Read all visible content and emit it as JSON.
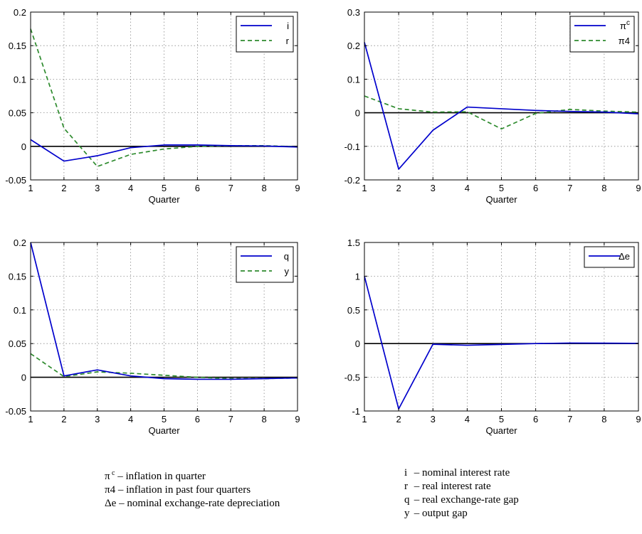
{
  "chart_data": [
    {
      "type": "line",
      "xlabel": "Quarter",
      "ylabel": "",
      "title": "",
      "x": [
        1,
        2,
        3,
        4,
        5,
        6,
        7,
        8,
        9
      ],
      "xlim": [
        1,
        9
      ],
      "ylim": [
        -0.05,
        0.2
      ],
      "xticks": [
        "1",
        "2",
        "3",
        "4",
        "5",
        "6",
        "7",
        "8",
        "9"
      ],
      "yticks": [
        "-0.05",
        "0",
        "0.05",
        "0.1",
        "0.15",
        "0.2"
      ],
      "ytick_values": [
        -0.05,
        0,
        0.05,
        0.1,
        0.15,
        0.2
      ],
      "grid": true,
      "legend": "top-right",
      "series": [
        {
          "name": "i",
          "color": "#0000cc",
          "style": "solid",
          "values": [
            0.01,
            -0.022,
            -0.014,
            -0.002,
            0.002,
            0.002,
            0.001,
            0.0005,
            -0.001
          ]
        },
        {
          "name": "r",
          "color": "#2e8b2e",
          "style": "dashed",
          "values": [
            0.175,
            0.027,
            -0.03,
            -0.012,
            -0.004,
            0.0,
            0.001,
            0.001,
            -0.0005
          ]
        }
      ]
    },
    {
      "type": "line",
      "xlabel": "Quarter",
      "ylabel": "",
      "title": "",
      "x": [
        1,
        2,
        3,
        4,
        5,
        6,
        7,
        8,
        9
      ],
      "xlim": [
        1,
        9
      ],
      "ylim": [
        -0.2,
        0.3
      ],
      "xticks": [
        "1",
        "2",
        "3",
        "4",
        "5",
        "6",
        "7",
        "8",
        "9"
      ],
      "yticks": [
        "-0.2",
        "-0.1",
        "0",
        "0.1",
        "0.2",
        "0.3"
      ],
      "ytick_values": [
        -0.2,
        -0.1,
        0,
        0.1,
        0.2,
        0.3
      ],
      "grid": true,
      "legend": "top-right",
      "series": [
        {
          "name": "πc",
          "label_base": "π",
          "label_sup": "c",
          "color": "#0000cc",
          "style": "solid",
          "values": [
            0.21,
            -0.168,
            -0.052,
            0.017,
            0.012,
            0.007,
            0.004,
            0.002,
            -0.003
          ]
        },
        {
          "name": "π4",
          "label_base": "π4",
          "label_sup": "",
          "color": "#2e8b2e",
          "style": "dashed",
          "values": [
            0.05,
            0.012,
            0.002,
            0.003,
            -0.048,
            -0.002,
            0.01,
            0.005,
            0.002
          ]
        }
      ]
    },
    {
      "type": "line",
      "xlabel": "Quarter",
      "ylabel": "",
      "title": "",
      "x": [
        1,
        2,
        3,
        4,
        5,
        6,
        7,
        8,
        9
      ],
      "xlim": [
        1,
        9
      ],
      "ylim": [
        -0.05,
        0.2
      ],
      "xticks": [
        "1",
        "2",
        "3",
        "4",
        "5",
        "6",
        "7",
        "8",
        "9"
      ],
      "yticks": [
        "-0.05",
        "0",
        "0.05",
        "0.1",
        "0.15",
        "0.2"
      ],
      "ytick_values": [
        -0.05,
        0,
        0.05,
        0.1,
        0.15,
        0.2
      ],
      "grid": true,
      "legend": "top-right",
      "series": [
        {
          "name": "q",
          "color": "#0000cc",
          "style": "solid",
          "values": [
            0.2,
            0.002,
            0.011,
            0.002,
            -0.002,
            -0.003,
            -0.003,
            -0.002,
            -0.001
          ]
        },
        {
          "name": "y",
          "color": "#2e8b2e",
          "style": "dashed",
          "values": [
            0.035,
            0.001,
            0.008,
            0.006,
            0.003,
            0.0,
            -0.002,
            -0.002,
            -0.001
          ]
        }
      ]
    },
    {
      "type": "line",
      "xlabel": "Quarter",
      "ylabel": "",
      "title": "",
      "x": [
        1,
        2,
        3,
        4,
        5,
        6,
        7,
        8,
        9
      ],
      "xlim": [
        1,
        9
      ],
      "ylim": [
        -1,
        1.5
      ],
      "xticks": [
        "1",
        "2",
        "3",
        "4",
        "5",
        "6",
        "7",
        "8",
        "9"
      ],
      "yticks": [
        "-1",
        "-0.5",
        "0",
        "0.5",
        "1",
        "1.5"
      ],
      "ytick_values": [
        -1,
        -0.5,
        0,
        0.5,
        1,
        1.5
      ],
      "grid": true,
      "legend": "top-right",
      "series": [
        {
          "name": "Δe",
          "color": "#0000cc",
          "style": "solid",
          "values": [
            1.0,
            -0.97,
            -0.01,
            -0.025,
            -0.012,
            0.0,
            0.008,
            0.006,
            0.004
          ]
        }
      ]
    }
  ],
  "notes": {
    "left": [
      {
        "sym": "π",
        "sup": "c",
        "text": " – inflation in quarter"
      },
      {
        "sym": "π4",
        "sup": "",
        "text": " – inflation in past four quarters"
      },
      {
        "sym": "Δe",
        "sup": "",
        "text": " – nominal exchange-rate depreciation"
      }
    ],
    "right": [
      {
        "sym": "i",
        "sup": "",
        "text": " – nominal interest rate"
      },
      {
        "sym": "r",
        "sup": "",
        "text": " – real interest rate"
      },
      {
        "sym": "q",
        "sup": "",
        "text": " – real exchange-rate gap"
      },
      {
        "sym": "y",
        "sup": "",
        "text": " – output gap"
      }
    ]
  }
}
